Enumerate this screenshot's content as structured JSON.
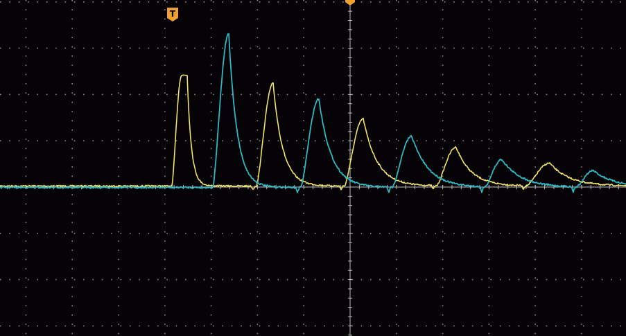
{
  "screen": {
    "background": "#050305",
    "grid_color": "#8a8a8a",
    "center_axis_color": "#bdbdbd",
    "grid_divisions": {
      "horizontal": 10,
      "vertical": 8
    }
  },
  "trigger_marker": {
    "label": "T",
    "color": "#f0a030",
    "icon": "trigger-marker-icon"
  },
  "center_marker": {
    "color": "#f0a030",
    "icon": "horizontal-position-marker-icon"
  },
  "channels": [
    {
      "name": "",
      "color": "#f2e36a"
    },
    {
      "name": "",
      "color": "#2fb7c3"
    }
  ]
}
